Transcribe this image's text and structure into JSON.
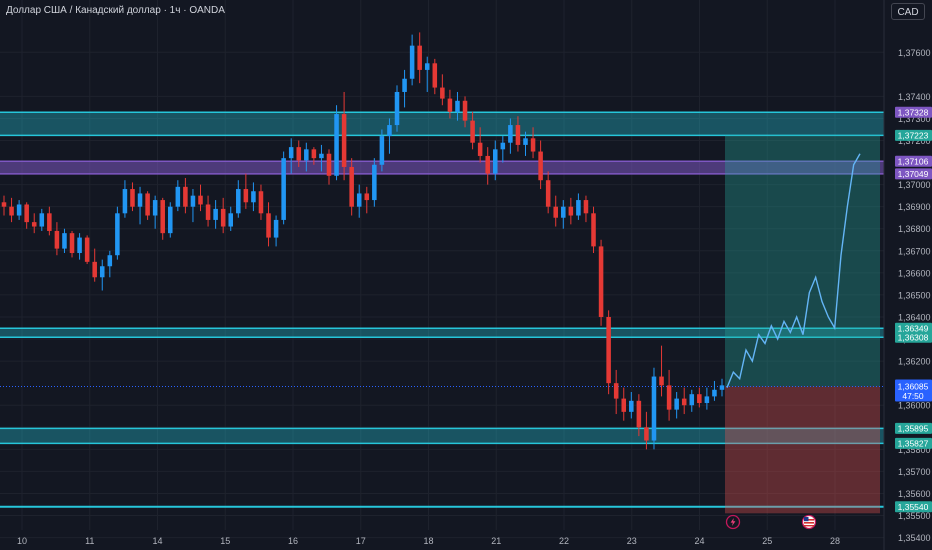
{
  "header": {
    "title": "Доллар США / Канадский доллар · 1ч · OANDA",
    "currency_button": "CAD"
  },
  "colors": {
    "background": "#131722",
    "up": "#2196f3",
    "down": "#e53935",
    "zone": "#26c6da",
    "purple_zone": "#7e57c2",
    "target": "#26a69a",
    "stop": "#ef5350",
    "current_price": "#2962ff"
  },
  "icons": [
    "lightning-icon",
    "us-flag-icon"
  ],
  "chart_data": {
    "type": "candlestick",
    "title": "Доллар США / Канадский доллар · 1ч · OANDA",
    "ylim": [
      1.3538,
      1.3771
    ],
    "y_ticks": [
      "1,35400",
      "1,35500",
      "1,35600",
      "1,35700",
      "1,35800",
      "1,35900",
      "1,36000",
      "1,36200",
      "1,36300",
      "1,36400",
      "1,36500",
      "1,36600",
      "1,36700",
      "1,36800",
      "1,36900",
      "1,37000",
      "1,37200",
      "1,37300",
      "1,37400",
      "1,37600"
    ],
    "x_ticks": [
      "10",
      "11",
      "14",
      "15",
      "16",
      "17",
      "18",
      "21",
      "22",
      "23",
      "24",
      "25",
      "28"
    ],
    "zones": [
      {
        "kind": "cyan",
        "top": 1.37328,
        "bottom": 1.37223
      },
      {
        "kind": "purple",
        "top": 1.37106,
        "bottom": 1.37049
      },
      {
        "kind": "cyan",
        "top": 1.36349,
        "bottom": 1.36308
      },
      {
        "kind": "cyan",
        "top": 1.35895,
        "bottom": 1.35827
      },
      {
        "kind": "line",
        "top": 1.3554,
        "bottom": 1.3554
      }
    ],
    "position": {
      "target": 1.37223,
      "entry": 1.36085,
      "stop": 1.3551
    },
    "price_labels": [
      {
        "text": "1,37328",
        "value": 1.37328,
        "color": "#7e57c2"
      },
      {
        "text": "1,37223",
        "value": 1.37223,
        "color": "#26a69a"
      },
      {
        "text": "1,37106",
        "value": 1.37106,
        "color": "#7e57c2"
      },
      {
        "text": "1,37049",
        "value": 1.37049,
        "color": "#7e57c2"
      },
      {
        "text": "1,36349",
        "value": 1.36349,
        "color": "#26a69a"
      },
      {
        "text": "1,36308",
        "value": 1.36308,
        "color": "#26a69a"
      },
      {
        "text": "1,35895",
        "value": 1.35895,
        "color": "#26a69a"
      },
      {
        "text": "1,35827",
        "value": 1.35827,
        "color": "#26a69a"
      },
      {
        "text": "1,35540",
        "value": 1.3554,
        "color": "#26a69a"
      }
    ],
    "current_price": {
      "text": "1,36085",
      "countdown": "47:50",
      "value": 1.36085
    },
    "candles": [
      [
        1.3692,
        1.3695,
        1.3686,
        1.369
      ],
      [
        1.369,
        1.3694,
        1.3683,
        1.3686
      ],
      [
        1.3686,
        1.3693,
        1.3684,
        1.3691
      ],
      [
        1.3691,
        1.3692,
        1.368,
        1.3683
      ],
      [
        1.3683,
        1.3687,
        1.3678,
        1.3681
      ],
      [
        1.3681,
        1.3689,
        1.3679,
        1.3687
      ],
      [
        1.3687,
        1.369,
        1.3677,
        1.3679
      ],
      [
        1.3679,
        1.3683,
        1.3668,
        1.3671
      ],
      [
        1.3671,
        1.368,
        1.3669,
        1.3678
      ],
      [
        1.3678,
        1.3679,
        1.3667,
        1.3669
      ],
      [
        1.3669,
        1.3678,
        1.3666,
        1.3676
      ],
      [
        1.3676,
        1.3677,
        1.3664,
        1.3665
      ],
      [
        1.3665,
        1.3671,
        1.3656,
        1.3658
      ],
      [
        1.3658,
        1.3666,
        1.3652,
        1.3663
      ],
      [
        1.3663,
        1.367,
        1.3658,
        1.3668
      ],
      [
        1.3668,
        1.369,
        1.3666,
        1.3687
      ],
      [
        1.3687,
        1.3702,
        1.3685,
        1.3698
      ],
      [
        1.3698,
        1.3701,
        1.3688,
        1.369
      ],
      [
        1.369,
        1.3699,
        1.3682,
        1.3696
      ],
      [
        1.3696,
        1.3697,
        1.3684,
        1.3686
      ],
      [
        1.3686,
        1.3695,
        1.368,
        1.3693
      ],
      [
        1.3693,
        1.3694,
        1.3675,
        1.3678
      ],
      [
        1.3678,
        1.3692,
        1.3676,
        1.369
      ],
      [
        1.369,
        1.3702,
        1.3688,
        1.3699
      ],
      [
        1.3699,
        1.3703,
        1.3687,
        1.369
      ],
      [
        1.369,
        1.3698,
        1.3683,
        1.3695
      ],
      [
        1.3695,
        1.37,
        1.3688,
        1.3691
      ],
      [
        1.3691,
        1.3695,
        1.3681,
        1.3684
      ],
      [
        1.3684,
        1.3693,
        1.368,
        1.3689
      ],
      [
        1.3689,
        1.3694,
        1.3678,
        1.3681
      ],
      [
        1.3681,
        1.369,
        1.3679,
        1.3687
      ],
      [
        1.3687,
        1.3702,
        1.3685,
        1.3698
      ],
      [
        1.3698,
        1.3705,
        1.3689,
        1.3692
      ],
      [
        1.3692,
        1.3701,
        1.3688,
        1.3697
      ],
      [
        1.3697,
        1.37,
        1.3684,
        1.3687
      ],
      [
        1.3687,
        1.3692,
        1.3672,
        1.3676
      ],
      [
        1.3676,
        1.3686,
        1.3672,
        1.3684
      ],
      [
        1.3684,
        1.3715,
        1.3682,
        1.3712
      ],
      [
        1.3712,
        1.3721,
        1.3705,
        1.3717
      ],
      [
        1.3717,
        1.372,
        1.3708,
        1.3711
      ],
      [
        1.3711,
        1.3719,
        1.3706,
        1.3716
      ],
      [
        1.3716,
        1.3717,
        1.3709,
        1.3712
      ],
      [
        1.3712,
        1.3718,
        1.3706,
        1.3714
      ],
      [
        1.3714,
        1.3716,
        1.37,
        1.3704
      ],
      [
        1.3704,
        1.3736,
        1.3702,
        1.3732
      ],
      [
        1.3732,
        1.3742,
        1.3702,
        1.3708
      ],
      [
        1.3708,
        1.3712,
        1.3686,
        1.369
      ],
      [
        1.369,
        1.37,
        1.3685,
        1.3696
      ],
      [
        1.3696,
        1.3699,
        1.3687,
        1.3693
      ],
      [
        1.3693,
        1.3712,
        1.369,
        1.3709
      ],
      [
        1.3709,
        1.3725,
        1.3706,
        1.3722
      ],
      [
        1.3722,
        1.373,
        1.3714,
        1.3727
      ],
      [
        1.3727,
        1.3745,
        1.3724,
        1.3742
      ],
      [
        1.3742,
        1.3752,
        1.3735,
        1.3748
      ],
      [
        1.3748,
        1.3768,
        1.3745,
        1.3763
      ],
      [
        1.3763,
        1.3769,
        1.3746,
        1.3752
      ],
      [
        1.3752,
        1.3758,
        1.3742,
        1.3755
      ],
      [
        1.3755,
        1.3757,
        1.3741,
        1.3744
      ],
      [
        1.3744,
        1.375,
        1.3736,
        1.3739
      ],
      [
        1.3739,
        1.3743,
        1.373,
        1.3733
      ],
      [
        1.3733,
        1.3742,
        1.3729,
        1.3738
      ],
      [
        1.3738,
        1.374,
        1.3726,
        1.3729
      ],
      [
        1.3729,
        1.3733,
        1.3716,
        1.3719
      ],
      [
        1.3719,
        1.3726,
        1.371,
        1.3713
      ],
      [
        1.3713,
        1.3717,
        1.37,
        1.3705
      ],
      [
        1.3705,
        1.372,
        1.3702,
        1.3716
      ],
      [
        1.3716,
        1.3722,
        1.371,
        1.3719
      ],
      [
        1.3719,
        1.373,
        1.3714,
        1.3727
      ],
      [
        1.3727,
        1.3731,
        1.3715,
        1.3718
      ],
      [
        1.3718,
        1.3724,
        1.3713,
        1.3721
      ],
      [
        1.3721,
        1.3726,
        1.3712,
        1.3715
      ],
      [
        1.3715,
        1.372,
        1.3698,
        1.3702
      ],
      [
        1.3702,
        1.3706,
        1.3687,
        1.369
      ],
      [
        1.369,
        1.3695,
        1.3681,
        1.3685
      ],
      [
        1.3685,
        1.3693,
        1.368,
        1.369
      ],
      [
        1.369,
        1.3694,
        1.3682,
        1.3686
      ],
      [
        1.3686,
        1.3696,
        1.3684,
        1.3693
      ],
      [
        1.3693,
        1.3695,
        1.3683,
        1.3687
      ],
      [
        1.3687,
        1.369,
        1.3669,
        1.3672
      ],
      [
        1.3672,
        1.3675,
        1.3636,
        1.364
      ],
      [
        1.364,
        1.3643,
        1.3605,
        1.361
      ],
      [
        1.361,
        1.3616,
        1.3596,
        1.3603
      ],
      [
        1.3603,
        1.3608,
        1.3593,
        1.3597
      ],
      [
        1.3597,
        1.3606,
        1.3594,
        1.3602
      ],
      [
        1.3602,
        1.3605,
        1.3586,
        1.359
      ],
      [
        1.359,
        1.3597,
        1.358,
        1.3584
      ],
      [
        1.3584,
        1.3617,
        1.358,
        1.3613
      ],
      [
        1.3613,
        1.3627,
        1.3604,
        1.3609
      ],
      [
        1.3609,
        1.3616,
        1.3593,
        1.3598
      ],
      [
        1.3598,
        1.3606,
        1.3594,
        1.3603
      ],
      [
        1.3603,
        1.3608,
        1.3596,
        1.36
      ],
      [
        1.36,
        1.3607,
        1.3597,
        1.3605
      ],
      [
        1.3605,
        1.3608,
        1.3599,
        1.3601
      ],
      [
        1.3601,
        1.3608,
        1.3598,
        1.3604
      ],
      [
        1.3604,
        1.3611,
        1.3602,
        1.3607
      ],
      [
        1.3607,
        1.3612,
        1.3604,
        1.3609
      ]
    ],
    "projection": [
      1.3608,
      1.3615,
      1.3612,
      1.3625,
      1.362,
      1.3632,
      1.3628,
      1.3636,
      1.363,
      1.3638,
      1.3633,
      1.364,
      1.3632,
      1.3651,
      1.3658,
      1.3647,
      1.364,
      1.3635,
      1.3668,
      1.369,
      1.3709,
      1.3714
    ]
  }
}
